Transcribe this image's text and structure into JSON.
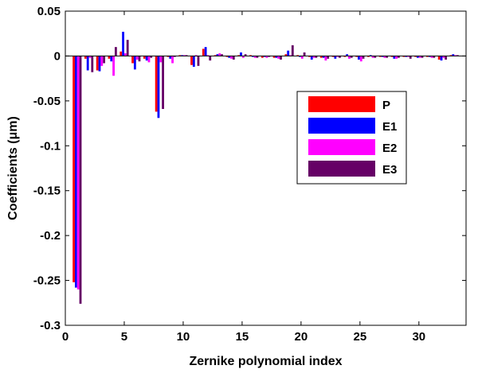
{
  "chart_data": {
    "type": "bar",
    "xlabel": "Zernike polynomial index",
    "ylabel": "Coefficients (μm)",
    "xlim": [
      0,
      34
    ],
    "ylim": [
      -0.3,
      0.05
    ],
    "x_ticks": [
      0,
      5,
      10,
      15,
      20,
      25,
      30
    ],
    "x_tick_labels": [
      "0",
      "5",
      "10",
      "15",
      "20",
      "25",
      "30"
    ],
    "y_ticks": [
      0.05,
      0,
      -0.05,
      -0.1,
      -0.15,
      -0.2,
      -0.25,
      -0.3
    ],
    "y_tick_labels": [
      "0.05",
      "0",
      "-0.05",
      "-0.1",
      "-0.15",
      "-0.2",
      "-0.25",
      "-0.3"
    ],
    "grid": false,
    "legend_position": "right",
    "x": [
      1,
      2,
      3,
      4,
      5,
      6,
      7,
      8,
      9,
      10,
      11,
      12,
      13,
      14,
      15,
      16,
      17,
      18,
      19,
      20,
      21,
      22,
      23,
      24,
      25,
      26,
      27,
      28,
      29,
      30,
      31,
      32,
      33
    ],
    "series": [
      {
        "name": "P",
        "color": "#ff0000",
        "values": [
          -0.252,
          -0.003,
          -0.016,
          -0.003,
          0.005,
          -0.008,
          -0.003,
          -0.062,
          -0.001,
          0.001,
          -0.01,
          0.008,
          0.001,
          -0.001,
          0.001,
          0.001,
          -0.002,
          -0.002,
          0.002,
          0.001,
          -0.001,
          -0.002,
          -0.001,
          -0.001,
          -0.001,
          -0.001,
          -0.001,
          -0.001,
          -0.001,
          -0.001,
          -0.001,
          -0.004,
          0.001
        ]
      },
      {
        "name": "E1",
        "color": "#0000ff",
        "values": [
          -0.258,
          -0.016,
          -0.017,
          -0.006,
          0.027,
          -0.015,
          -0.005,
          -0.069,
          -0.003,
          0.001,
          -0.012,
          0.01,
          0.002,
          -0.002,
          0.004,
          -0.001,
          -0.001,
          -0.002,
          0.006,
          -0.001,
          -0.004,
          -0.002,
          -0.003,
          0.002,
          -0.004,
          0.001,
          -0.001,
          -0.003,
          -0.001,
          -0.002,
          -0.001,
          -0.005,
          0.002
        ]
      },
      {
        "name": "E2",
        "color": "#ff00ff",
        "values": [
          -0.26,
          -0.002,
          -0.011,
          -0.022,
          0.003,
          -0.004,
          -0.007,
          -0.007,
          -0.008,
          0.001,
          0.001,
          0.001,
          0.003,
          -0.003,
          -0.002,
          -0.002,
          -0.002,
          -0.003,
          0.001,
          -0.003,
          -0.002,
          -0.005,
          -0.001,
          -0.003,
          -0.006,
          -0.002,
          -0.002,
          -0.003,
          -0.001,
          -0.002,
          -0.002,
          -0.002,
          0.001
        ]
      },
      {
        "name": "E3",
        "color": "#660066",
        "values": [
          -0.276,
          -0.018,
          -0.008,
          0.01,
          0.018,
          -0.006,
          -0.002,
          -0.059,
          -0.001,
          0.001,
          -0.011,
          -0.005,
          0.002,
          -0.004,
          0.002,
          -0.002,
          -0.001,
          -0.004,
          0.012,
          0.004,
          -0.002,
          -0.003,
          -0.002,
          -0.002,
          -0.003,
          -0.002,
          -0.002,
          -0.002,
          -0.003,
          -0.002,
          -0.002,
          -0.004,
          0.001
        ]
      }
    ]
  }
}
